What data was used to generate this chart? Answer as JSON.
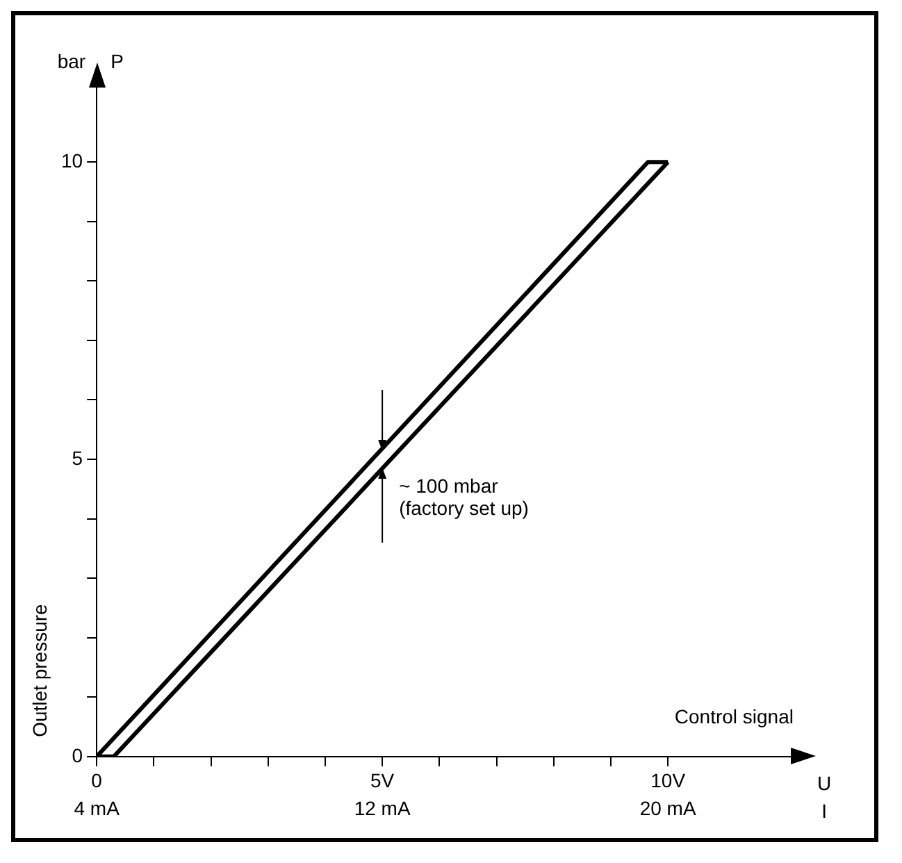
{
  "chart_data": {
    "type": "line",
    "xlabel": "Control signal",
    "ylabel": "Outlet pressure",
    "series": [
      {
        "color": "#000000",
        "x": [
          0,
          9.65,
          10
        ],
        "values": [
          0,
          10,
          10
        ]
      },
      {
        "color": "#000000",
        "x": [
          0,
          0.3,
          10
        ],
        "values": [
          0,
          0,
          10
        ]
      }
    ],
    "xlim": [
      0,
      12.2
    ],
    "ylim": [
      0,
      11.3
    ],
    "xticks": [
      {
        "value": 0,
        "label": "0"
      },
      {
        "value": 1,
        "label": null
      },
      {
        "value": 2,
        "label": null
      },
      {
        "value": 3,
        "label": null
      },
      {
        "value": 4,
        "label": null
      },
      {
        "value": 5,
        "label": "5V"
      },
      {
        "value": 6,
        "label": null
      },
      {
        "value": 7,
        "label": null
      },
      {
        "value": 8,
        "label": null
      },
      {
        "value": 9,
        "label": null
      },
      {
        "value": 10,
        "label": "10V"
      }
    ],
    "x2lim": [
      4,
      23.52
    ],
    "x2ticks": [
      {
        "value": 4,
        "label": "4 mA"
      },
      {
        "value": 12,
        "label": "12 mA"
      },
      {
        "value": 20,
        "label": "20 mA"
      }
    ],
    "yticks": [
      0,
      {
        "value": 1,
        "label": null
      },
      {
        "value": 2,
        "label": null
      },
      {
        "value": 3,
        "label": null
      },
      {
        "value": 4,
        "label": null
      },
      5,
      {
        "value": 6,
        "label": null
      },
      {
        "value": 7,
        "label": null
      },
      {
        "value": 8,
        "label": null
      },
      {
        "value": 9,
        "label": null
      },
      10
    ],
    "annotations": [
      "bar",
      "P",
      "U",
      "I",
      "~ 100 mbar\n(factory set up)"
    ],
    "grid": false,
    "legend": false,
    "marker": "none",
    "line_style": "solid"
  }
}
